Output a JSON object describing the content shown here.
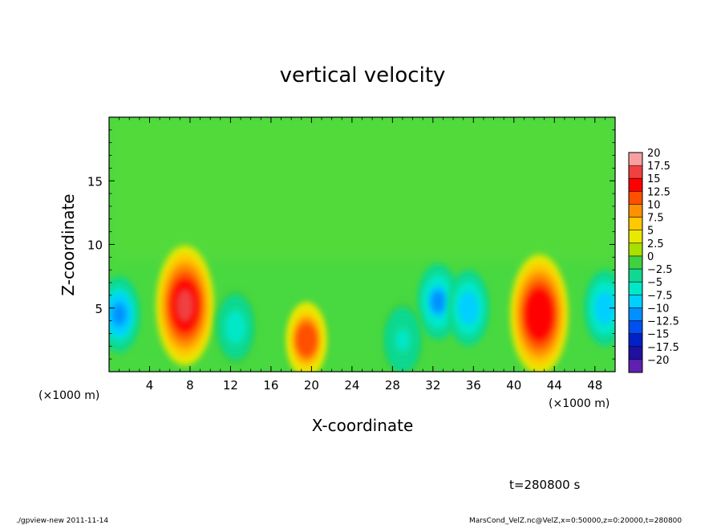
{
  "chart_data": {
    "type": "heatmap",
    "title": "vertical velocity",
    "xlabel": "X-coordinate",
    "ylabel": "Z-coordinate",
    "x_unit_note_left": "(×1000 m)",
    "x_unit_note_right": "(×1000 m)",
    "xlim": [
      0,
      50
    ],
    "ylim": [
      0,
      20
    ],
    "x_ticks": [
      4,
      8,
      12,
      16,
      20,
      24,
      28,
      32,
      36,
      40,
      44,
      48
    ],
    "y_ticks": [
      5,
      10,
      15
    ],
    "colorbar": {
      "levels": [
        20,
        17.5,
        15,
        12.5,
        10,
        7.5,
        5,
        2.5,
        0,
        -2.5,
        -5,
        -7.5,
        -10,
        -12.5,
        -15,
        -17.5,
        -20
      ],
      "labels": [
        "20",
        "17.5",
        "15",
        "12.5",
        "10",
        "7.5",
        "5",
        "2.5",
        "0",
        "−2.5",
        "−5",
        "−7.5",
        "−10",
        "−12.5",
        "−15",
        "−17.5",
        "−20"
      ],
      "colors": [
        "#f8a0a0",
        "#f04040",
        "#ff0000",
        "#ff5000",
        "#ff9000",
        "#ffc800",
        "#e8e800",
        "#a8e000",
        "#40d040",
        "#10d890",
        "#00e8c8",
        "#00d0ff",
        "#0090ff",
        "#0050f0",
        "#0020c8",
        "#2010a0",
        "#6020b0"
      ]
    },
    "features": [
      {
        "x": 1.0,
        "z": 4.5,
        "value": -11,
        "note": "downdraft near left edge"
      },
      {
        "x": 7.5,
        "z": 5.2,
        "value": 16,
        "note": "strong updraft"
      },
      {
        "x": 19.5,
        "z": 2.5,
        "value": 12,
        "note": "small updraft"
      },
      {
        "x": 32.5,
        "z": 5.5,
        "value": -10,
        "note": "downdraft"
      },
      {
        "x": 35.5,
        "z": 5.0,
        "value": -9,
        "note": "downdraft"
      },
      {
        "x": 42.5,
        "z": 4.5,
        "value": 15,
        "note": "strong updraft"
      },
      {
        "x": 49.0,
        "z": 5.0,
        "value": -9,
        "note": "downdraft near right edge"
      },
      {
        "x": 12.5,
        "z": 3.5,
        "value": -6,
        "note": "weak downdraft"
      },
      {
        "x": 29.0,
        "z": 2.5,
        "value": -5,
        "note": "weak downdraft"
      }
    ]
  },
  "time_label": "t=280800 s",
  "footer": {
    "left": "./gpview-new  2011-11-14",
    "right": "MarsCond_VelZ.nc@VelZ,x=0:50000,z=0:20000,t=280800"
  }
}
